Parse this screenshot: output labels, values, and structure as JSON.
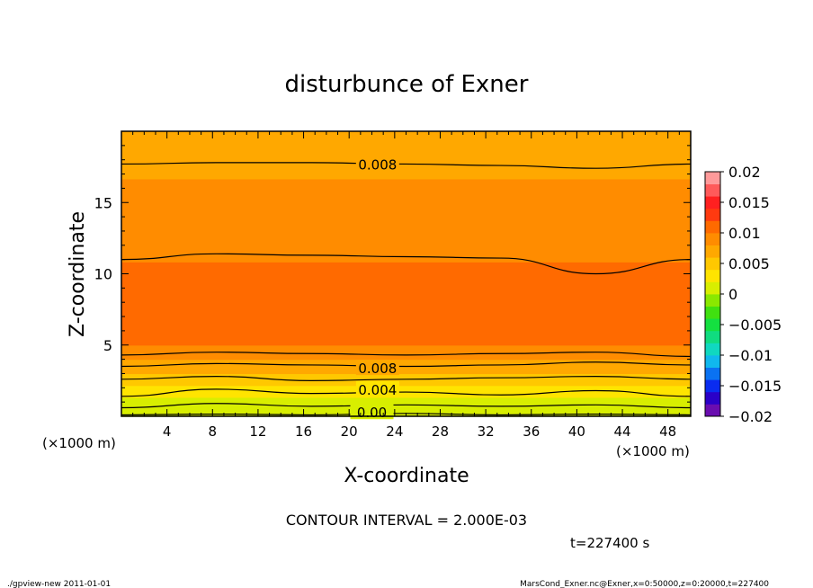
{
  "chart_data": {
    "type": "heatmap",
    "title": "disturbunce of Exner",
    "xlabel": "X-coordinate",
    "ylabel": "Z-coordinate",
    "x_unit_label": "(×1000 m)",
    "x_unit_label_right": "(×1000 m)",
    "xlim": [
      0,
      50
    ],
    "ylim": [
      0,
      20
    ],
    "x_ticks": [
      "4",
      "8",
      "12",
      "16",
      "20",
      "24",
      "28",
      "32",
      "36",
      "40",
      "44",
      "48"
    ],
    "y_ticks": [
      "5",
      "10",
      "15"
    ],
    "contour_interval_text": "CONTOUR INTERVAL = 2.000E-03",
    "time_text": "t=227400 s",
    "contour_labels": [
      "0.008",
      "0.008",
      "0.004",
      "0.00"
    ],
    "colorbar": {
      "ticks": [
        "0.02",
        "0.015",
        "0.01",
        "0.005",
        "0",
        "−0.005",
        "−0.01",
        "−0.015",
        "−0.02"
      ],
      "range": [
        -0.02,
        0.02
      ],
      "colors": [
        "#6a0db0",
        "#2a00c8",
        "#0a2cf0",
        "#0a72f2",
        "#10b8ee",
        "#10d8c0",
        "#10dc80",
        "#14e040",
        "#40e010",
        "#8ae800",
        "#d8ee00",
        "#ffe400",
        "#ffc800",
        "#ffa800",
        "#ff8c00",
        "#ff6a00",
        "#ff3a10",
        "#ff2020",
        "#ff5a5a",
        "#ff9a9a"
      ]
    },
    "levels": [
      {
        "z": 0.0,
        "value": 0.0
      },
      {
        "z": 1.0,
        "value": 0.001
      },
      {
        "z": 1.8,
        "value": 0.003
      },
      {
        "z": 2.6,
        "value": 0.005
      },
      {
        "z": 3.5,
        "value": 0.007
      },
      {
        "z": 4.3,
        "value": 0.0085
      },
      {
        "z": 5.2,
        "value": 0.0105
      },
      {
        "z": 7.0,
        "value": 0.0118
      },
      {
        "z": 8.3,
        "value": 0.0108
      },
      {
        "z": 11.5,
        "value": 0.0098
      },
      {
        "z": 14.0,
        "value": 0.0088
      },
      {
        "z": 17.7,
        "value": 0.0077
      },
      {
        "z": 20.0,
        "value": 0.0072
      }
    ],
    "contour_lines": [
      {
        "value": 0.0,
        "z": [
          0.1,
          0.15,
          0.1,
          0.2,
          0.1,
          0.15,
          0.1
        ]
      },
      {
        "value": 0.002,
        "z": [
          0.6,
          0.9,
          0.7,
          0.8,
          0.7,
          0.8,
          0.6
        ]
      },
      {
        "value": 0.004,
        "z": [
          1.4,
          1.9,
          1.6,
          1.7,
          1.5,
          1.8,
          1.4
        ]
      },
      {
        "value": 0.006,
        "z": [
          2.6,
          2.8,
          2.5,
          2.6,
          2.7,
          2.8,
          2.6
        ]
      },
      {
        "value": 0.008,
        "z": [
          3.5,
          3.7,
          3.6,
          3.5,
          3.6,
          3.8,
          3.6
        ]
      },
      {
        "value": 0.01,
        "z": [
          4.3,
          4.5,
          4.4,
          4.3,
          4.4,
          4.5,
          4.2
        ]
      },
      {
        "value": 0.01,
        "z": [
          11.0,
          11.4,
          11.3,
          11.2,
          11.1,
          10.0,
          11.0
        ]
      },
      {
        "value": 0.008,
        "z": [
          17.7,
          17.8,
          17.8,
          17.7,
          17.6,
          17.4,
          17.7
        ]
      }
    ]
  },
  "footer": {
    "left": "./gpview-new   2011-01-01",
    "right": "MarsCond_Exner.nc@Exner,x=0:50000,z=0:20000,t=227400"
  }
}
